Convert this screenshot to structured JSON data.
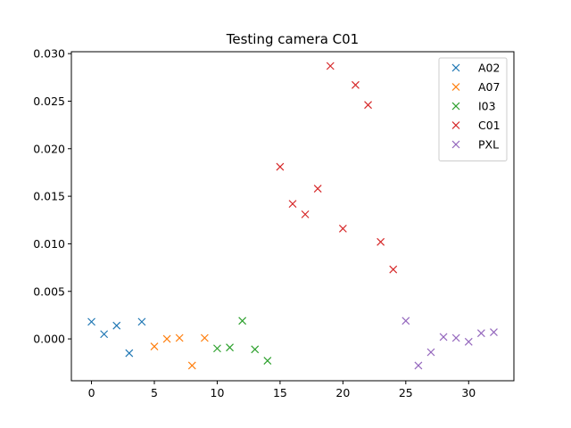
{
  "chart_data": {
    "type": "scatter",
    "title": "Testing camera C01",
    "xlabel": "",
    "ylabel": "",
    "xlim": [
      -1.6,
      33.6
    ],
    "ylim": [
      -0.0044,
      0.0302
    ],
    "x_ticks": [
      0,
      5,
      10,
      15,
      20,
      25,
      30
    ],
    "x_tick_labels": [
      "0",
      "5",
      "10",
      "15",
      "20",
      "25",
      "30"
    ],
    "y_ticks": [
      0.0,
      0.005,
      0.01,
      0.015,
      0.02,
      0.025,
      0.03
    ],
    "y_tick_labels": [
      "0.000",
      "0.005",
      "0.010",
      "0.015",
      "0.020",
      "0.025",
      "0.030"
    ],
    "grid": false,
    "legend_position": "top-right",
    "marker": "x",
    "series": [
      {
        "name": "A02",
        "color": "#1f77b4",
        "x": [
          0,
          1,
          2,
          3,
          4
        ],
        "y": [
          0.0018,
          0.0005,
          0.0014,
          -0.0015,
          0.0018
        ]
      },
      {
        "name": "A07",
        "color": "#ff7f0e",
        "x": [
          5,
          6,
          7,
          8,
          9
        ],
        "y": [
          -0.0008,
          0.0,
          0.0001,
          -0.0028,
          0.0001
        ]
      },
      {
        "name": "I03",
        "color": "#2ca02c",
        "x": [
          10,
          11,
          12,
          13,
          14
        ],
        "y": [
          -0.001,
          -0.0009,
          0.0019,
          -0.0011,
          -0.0023
        ]
      },
      {
        "name": "C01",
        "color": "#d62728",
        "x": [
          15,
          16,
          17,
          18,
          19,
          20,
          21,
          22,
          23,
          24
        ],
        "y": [
          0.0181,
          0.0142,
          0.0131,
          0.0158,
          0.0287,
          0.0116,
          0.0267,
          0.0246,
          0.0102,
          0.0073
        ]
      },
      {
        "name": "PXL",
        "color": "#9467bd",
        "x": [
          25,
          26,
          27,
          28,
          29,
          30,
          31,
          32
        ],
        "y": [
          0.0019,
          -0.0028,
          -0.0014,
          0.0002,
          0.0001,
          -0.0003,
          0.0006,
          0.0007
        ]
      }
    ]
  }
}
